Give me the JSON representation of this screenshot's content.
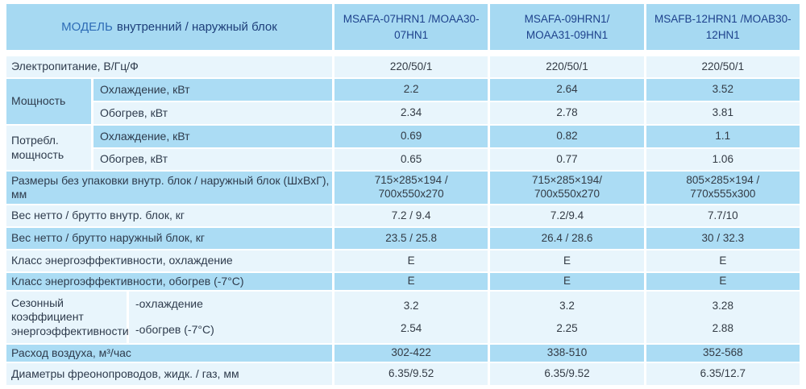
{
  "header": {
    "title_model": "МОДЕЛЬ",
    "title_rest": "внутренний / наружный блок",
    "models": [
      "MSAFA-07HRN1 /MOAA30-\n07HN1",
      "MSAFA-09HRN1/\nMOAA31-09HN1",
      "MSAFB-12HRN1 /MOAB30-\n12HN1"
    ]
  },
  "rows": {
    "power": {
      "label": "Электропитание, В/Гц/Ф",
      "v": [
        "220/50/1",
        "220/50/1",
        "220/50/1"
      ]
    },
    "capacity": {
      "group": "Мощность",
      "cooling": {
        "label": "Охлаждение, кВт",
        "v": [
          "2.2",
          "2.64",
          "3.52"
        ]
      },
      "heating": {
        "label": "Обогрев, кВт",
        "v": [
          "2.34",
          "2.78",
          "3.81"
        ]
      }
    },
    "consumption": {
      "group": "Потребл.\nмощность",
      "cooling": {
        "label": "Охлаждение, кВт",
        "v": [
          "0.69",
          "0.82",
          "1.1"
        ]
      },
      "heating": {
        "label": "Обогрев, кВт",
        "v": [
          "0.65",
          "0.77",
          "1.06"
        ]
      }
    },
    "dimensions": {
      "label": "Размеры без упаковки внутр. блок / наружный блок  (ШхВхГ), мм",
      "v": [
        "715×285×194 /\n700x550x270",
        "715×285×194/\n700x550x270",
        "805×285×194 /\n770x555x300"
      ]
    },
    "weight_indoor": {
      "label": "Вес нетто / брутто внутр. блок, кг",
      "v": [
        "7.2 / 9.4",
        "7.2/9.4",
        "7.7/10"
      ]
    },
    "weight_outdoor": {
      "label": "Вес нетто / брутто наружный блок, кг",
      "v": [
        "23.5 / 25.8",
        "26.4 / 28.6",
        "30 / 32.3"
      ]
    },
    "eer_class_cooling": {
      "label": "Класс энергоэффективности, охлаждение",
      "v": [
        "E",
        "E",
        "E"
      ]
    },
    "eer_class_heating": {
      "label": "Класс энергоэффективности, обогрев  (-7°C)",
      "v": [
        "E",
        "E",
        "E"
      ]
    },
    "seasonal": {
      "group": "Сезонный\nкоэффициент\nэнергоэффективности",
      "cooling": {
        "label": "-охлаждение",
        "v": [
          "3.2",
          "3.2",
          "3.28"
        ]
      },
      "heating": {
        "label": "-обогрев  (-7°C)",
        "v": [
          "2.54",
          "2.25",
          "2.88"
        ]
      }
    },
    "airflow": {
      "label": "Расход воздуха, м³/час",
      "v": [
        "302-422",
        "338-510",
        "352-568"
      ]
    },
    "pipe_diameters": {
      "label": "Диаметры фреонопроводов, жидк. / газ, мм",
      "v": [
        "6.35/9.52",
        "6.35/9.52",
        "6.35/12.7"
      ]
    }
  },
  "colors": {
    "header_bg": "#a6d9f2",
    "row_dark": "#abdcf4",
    "row_light": "#e8f5fc",
    "label_text": "#2e3b4c",
    "value_text": "#333b45",
    "model_text": "#1d418c",
    "title_accent": "#2e6cb6"
  }
}
